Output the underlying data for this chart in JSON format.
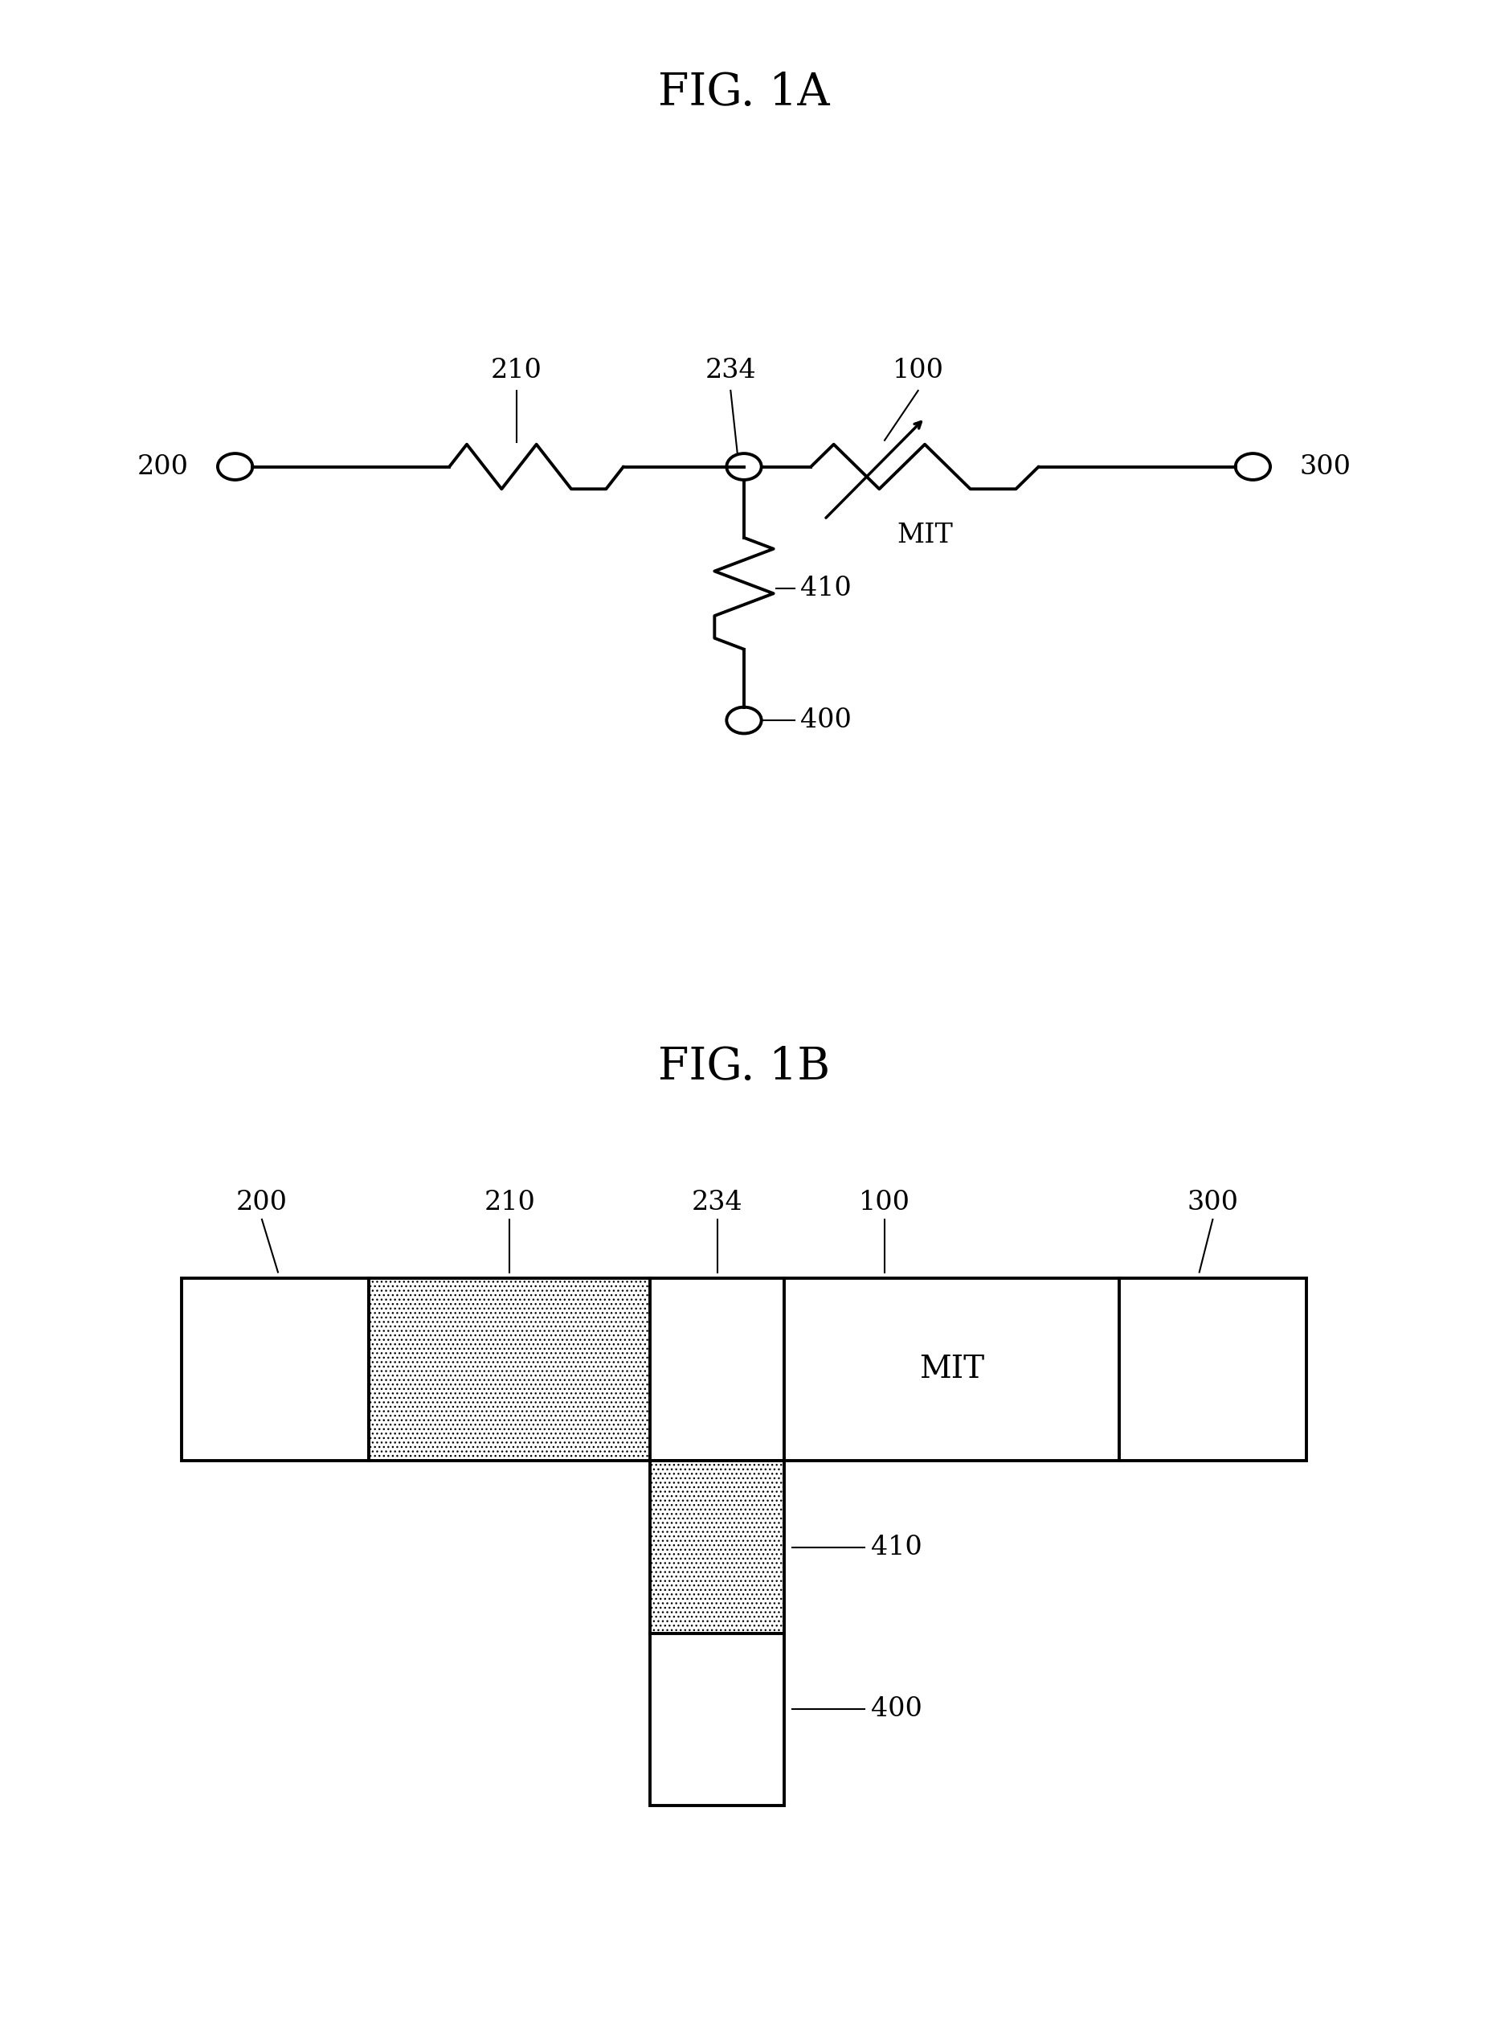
{
  "fig1a_title": "FIG. 1A",
  "fig1b_title": "FIG. 1B",
  "background_color": "#ffffff",
  "line_color": "#000000",
  "label_200": "200",
  "label_210": "210",
  "label_234": "234",
  "label_100": "100",
  "label_300": "300",
  "label_MIT": "MIT",
  "label_410": "410",
  "label_400": "400",
  "title_fontsize": 40,
  "circuit_label_fontsize": 24,
  "line_width": 2.8
}
